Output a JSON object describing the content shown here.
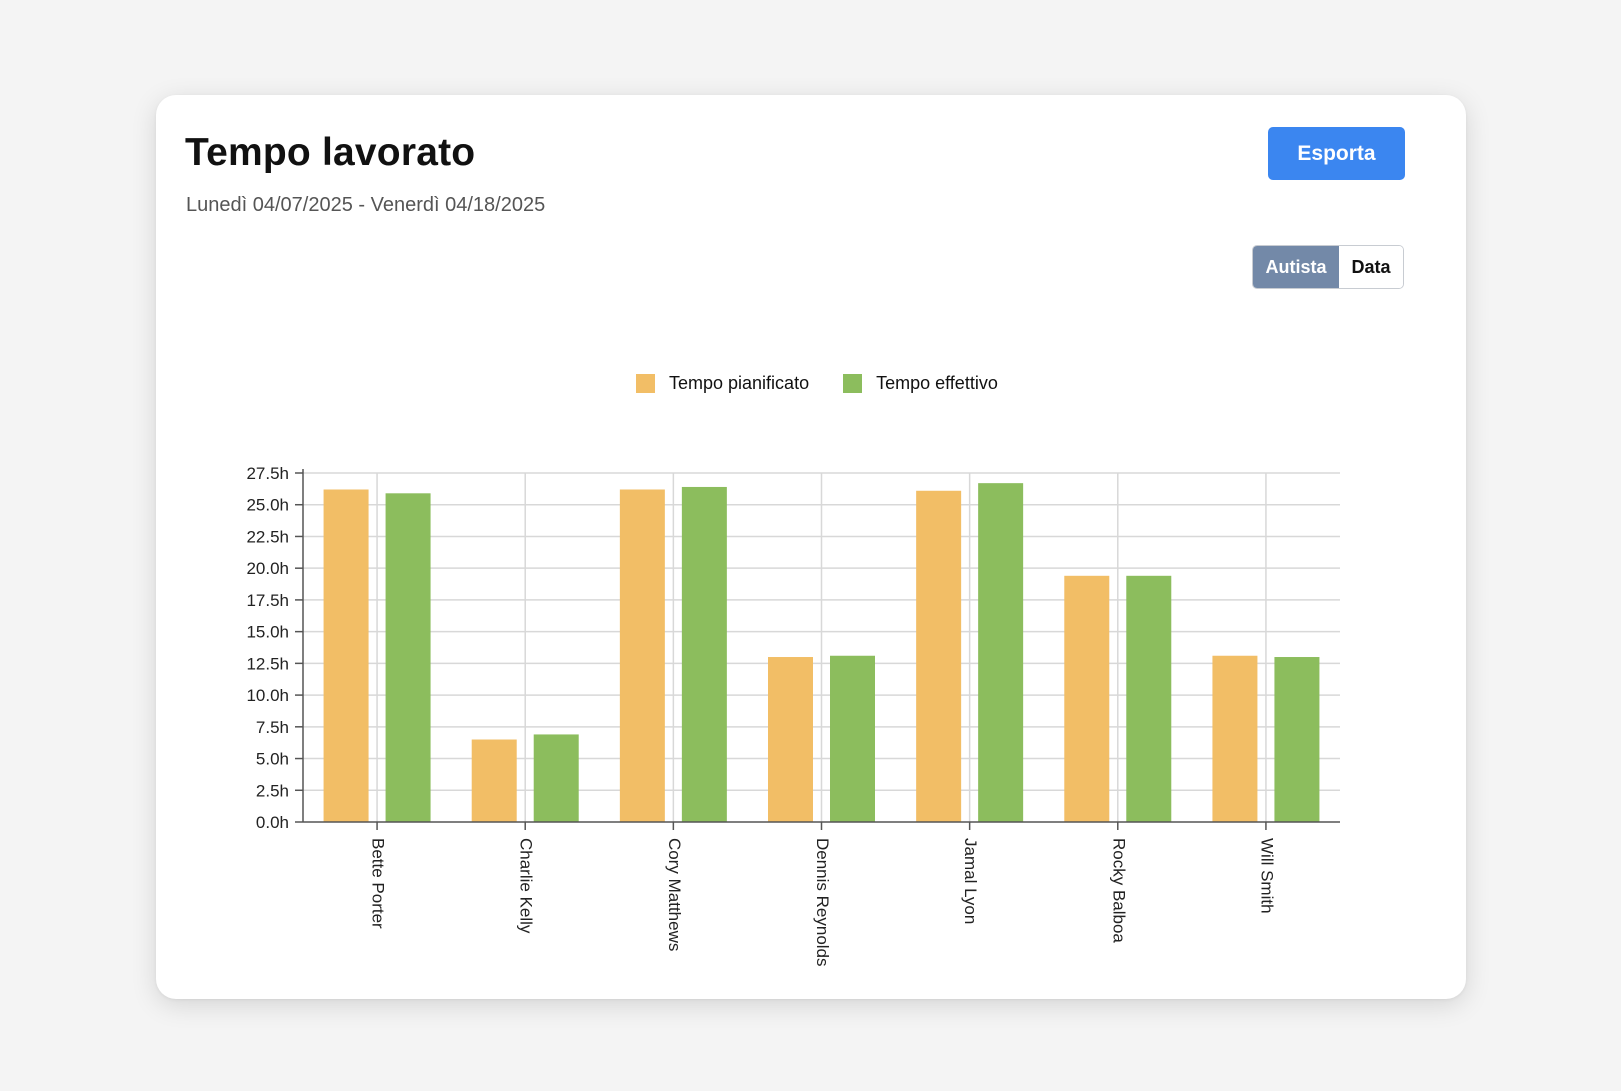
{
  "header": {
    "title": "Tempo lavorato",
    "subtitle": "Lunedì 04/07/2025 - Venerdì 04/18/2025",
    "export_label": "Esporta"
  },
  "view_toggle": {
    "options": [
      {
        "label": "Autista",
        "active": true
      },
      {
        "label": "Data",
        "active": false
      }
    ]
  },
  "colors": {
    "export_button": "#3b86f0",
    "toggle_active": "#7389a8",
    "planned": "#f2be66",
    "actual": "#8cbd5d",
    "grid": "#d8d8d8",
    "axis": "#555555"
  },
  "chart_data": {
    "type": "bar",
    "categories": [
      "Bette Porter",
      "Charlie Kelly",
      "Cory Matthews",
      "Dennis Reynolds",
      "Jamal Lyon",
      "Rocky Balboa",
      "Will Smith"
    ],
    "series": [
      {
        "name": "Tempo pianificato",
        "values": [
          26.2,
          6.5,
          26.2,
          13.0,
          26.1,
          19.4,
          13.1
        ]
      },
      {
        "name": "Tempo effettivo",
        "values": [
          25.9,
          6.9,
          26.4,
          13.1,
          26.7,
          19.4,
          13.0
        ]
      }
    ],
    "ylim": [
      0,
      27.5
    ],
    "yticks": [
      "0.0h",
      "2.5h",
      "5.0h",
      "7.5h",
      "10.0h",
      "12.5h",
      "15.0h",
      "17.5h",
      "20.0h",
      "22.5h",
      "25.0h",
      "27.5h"
    ],
    "grid": true,
    "legend_position": "top-center",
    "category_label_rotation": "vertical"
  }
}
